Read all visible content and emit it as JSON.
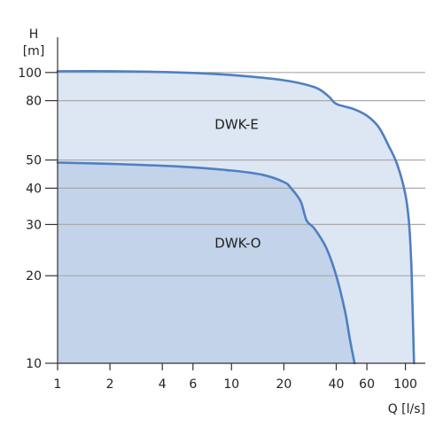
{
  "chart_data": {
    "type": "area",
    "xlabel": "Q [l/s]",
    "ylabel_line1": "H",
    "ylabel_line2": "[m]",
    "x_scale": "log",
    "y_scale": "log",
    "xlim": [
      1,
      130
    ],
    "ylim": [
      10,
      125
    ],
    "x_ticks": [
      1,
      2,
      4,
      6,
      10,
      20,
      40,
      60,
      100
    ],
    "y_ticks": [
      10,
      20,
      30,
      40,
      50,
      80,
      100
    ],
    "grid": "horizontal",
    "series": [
      {
        "name": "DWK-E",
        "label_at": [
          8,
          64
        ],
        "points": [
          [
            1,
            101
          ],
          [
            2,
            101
          ],
          [
            5,
            100
          ],
          [
            10,
            98
          ],
          [
            20,
            94
          ],
          [
            30,
            89
          ],
          [
            36,
            83
          ],
          [
            40,
            78
          ],
          [
            50,
            75
          ],
          [
            60,
            71
          ],
          [
            70,
            65
          ],
          [
            80,
            56
          ],
          [
            90,
            48
          ],
          [
            100,
            38
          ],
          [
            105,
            30
          ],
          [
            108,
            22
          ],
          [
            110,
            15
          ],
          [
            112,
            10
          ]
        ]
      },
      {
        "name": "DWK-O",
        "label_at": [
          8,
          25
        ],
        "points": [
          [
            1,
            49
          ],
          [
            2,
            48.5
          ],
          [
            5,
            47.5
          ],
          [
            10,
            46
          ],
          [
            15,
            44.5
          ],
          [
            20,
            42
          ],
          [
            22,
            40
          ],
          [
            25,
            36
          ],
          [
            27,
            31
          ],
          [
            30,
            29
          ],
          [
            35,
            25
          ],
          [
            40,
            20
          ],
          [
            45,
            15
          ],
          [
            48,
            12
          ],
          [
            51,
            10
          ]
        ]
      }
    ],
    "colors": {
      "DWK-E_fill": "#dde6f3",
      "DWK-O_fill": "#c2d3ea",
      "curve": "#4f7fc2",
      "grid": "#a9a9a9",
      "axis": "#333333"
    }
  }
}
